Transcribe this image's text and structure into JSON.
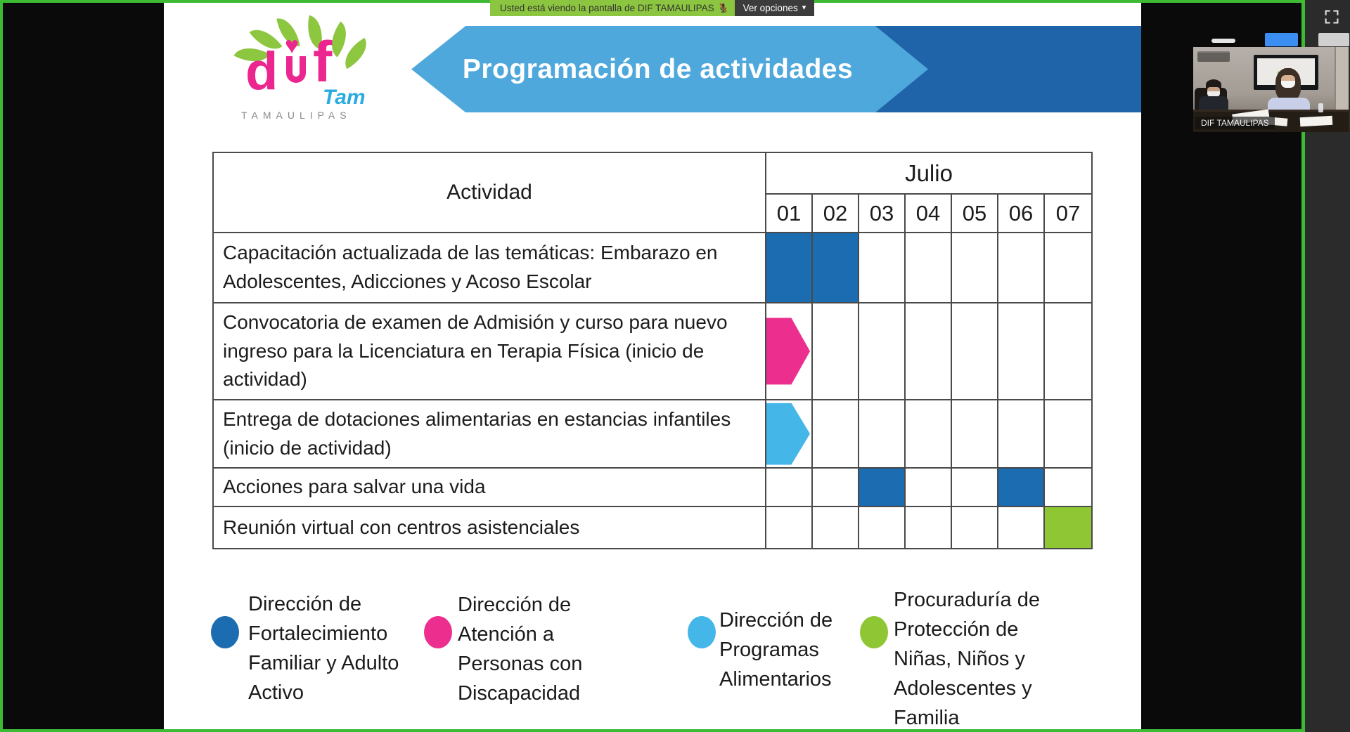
{
  "top_bar": {
    "message": "Usted está viendo la pantalla de DIF TAMAULIPAS",
    "options_button": "Ver opciones",
    "colors": {
      "bar_green": "#8CC53F",
      "button_bg": "#3C3C3C"
    }
  },
  "share": {
    "border_green": "#3DBB35"
  },
  "icons": {
    "chevron_down": "▾"
  },
  "video_panel": {
    "participant_name": "DIF TAMAULIPAS",
    "screen_logo": "dif"
  },
  "slide": {
    "logo": {
      "dif_d": "d",
      "dif_f": "f",
      "heart": "♥",
      "tam": "Tam",
      "region": "TAMAULIPAS"
    },
    "banner": {
      "title": "Programación de actividades",
      "light_blue": "#4FA8DC",
      "dark_blue": "#1F63A8"
    },
    "table": {
      "activity_header": "Actividad",
      "month_header": "Julio",
      "days": [
        "01",
        "02",
        "03",
        "04",
        "05",
        "06",
        "07"
      ],
      "rows": [
        {
          "activity": "Capacitación actualizada de las temáticas: Embarazo en Adolescentes, Adicciones y Acoso Escolar",
          "marks": [
            {
              "day": "01",
              "shape": "fill",
              "color": "dark_blue"
            },
            {
              "day": "02",
              "shape": "fill",
              "color": "dark_blue"
            }
          ]
        },
        {
          "activity": "Convocatoria de examen de Admisión y curso para nuevo ingreso para la Licenciatura en Terapia Física (inicio de actividad)",
          "marks": [
            {
              "day": "01",
              "shape": "arrow",
              "color": "pink",
              "height_pct": 70
            }
          ]
        },
        {
          "activity": "Entrega de dotaciones alimentarias en estancias infantiles (inicio de actividad)",
          "marks": [
            {
              "day": "01",
              "shape": "arrow",
              "color": "light_blue",
              "height_pct": 93
            }
          ]
        },
        {
          "activity": "Acciones para salvar una vida",
          "marks": [
            {
              "day": "03",
              "shape": "fill",
              "color": "dark_blue"
            },
            {
              "day": "06",
              "shape": "fill",
              "color": "dark_blue"
            }
          ]
        },
        {
          "activity": "Reunión virtual con centros asistenciales",
          "marks": [
            {
              "day": "07",
              "shape": "fill",
              "color": "green"
            }
          ]
        }
      ]
    },
    "legend": [
      {
        "color": "dark_blue",
        "label": "Dirección de Fortalecimiento Familiar y Adulto Activo"
      },
      {
        "color": "pink",
        "label": "Dirección de Atención a Personas con Discapacidad"
      },
      {
        "color": "light_blue",
        "label": "Dirección de Programas Alimentarios"
      },
      {
        "color": "green",
        "label": "Procuraduría de Protección de Niñas, Niños y Adolescentes y Familia"
      }
    ],
    "colors": {
      "dark_blue": "#1B6CB0",
      "pink": "#EC2E8F",
      "light_blue": "#45B6E8",
      "green": "#8EC733"
    }
  }
}
